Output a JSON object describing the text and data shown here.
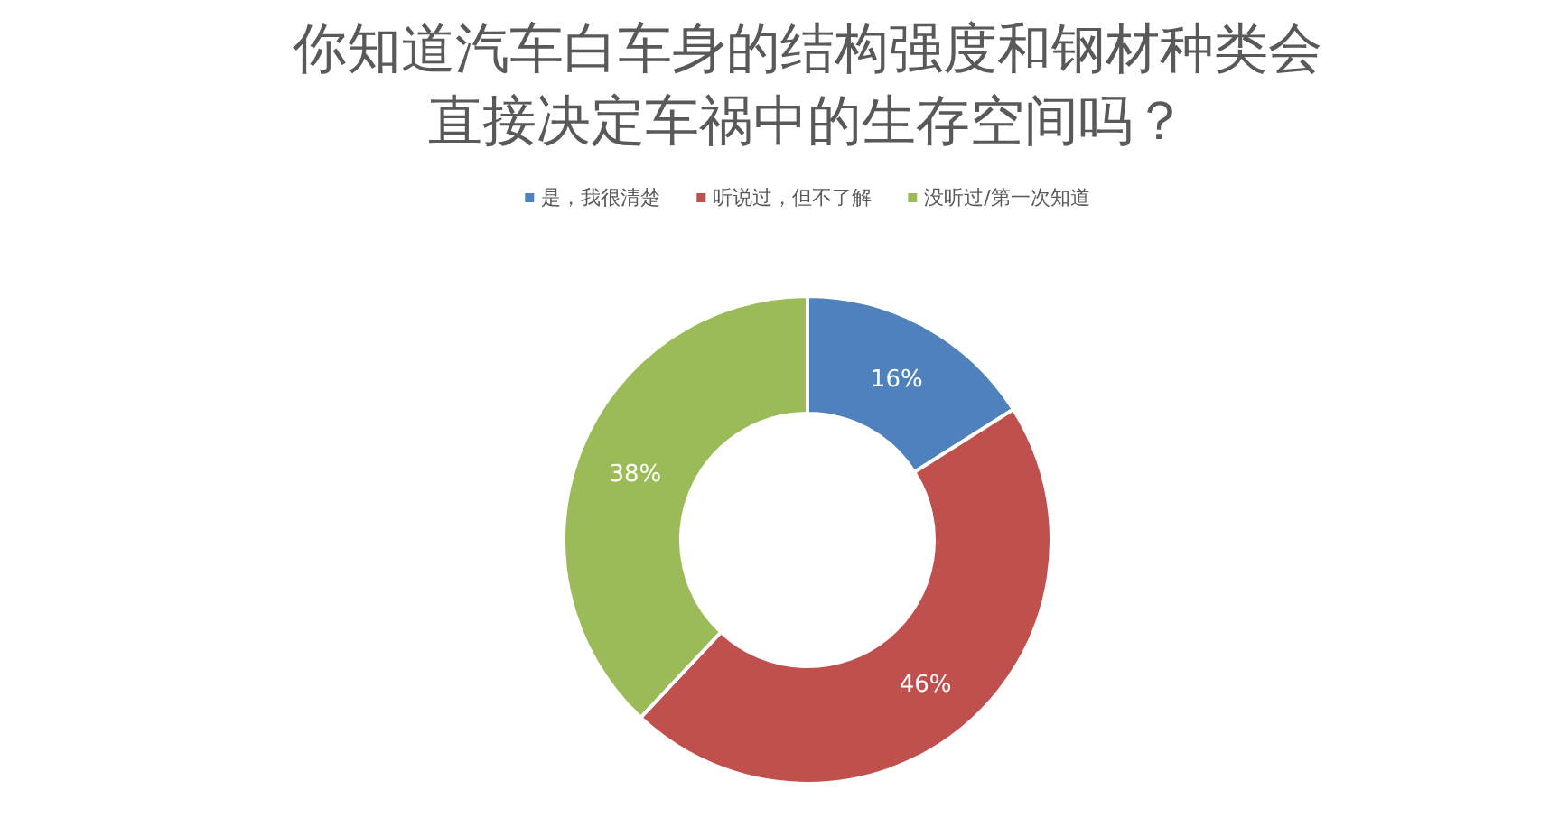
{
  "chart_data": {
    "type": "donut",
    "title": "你知道汽车白车身的结构强度和钢材种类会直接决定车祸中的生存空间吗？",
    "categories": [
      "是，我很清楚",
      "听说过，但不了解",
      "没听过/第一次知道"
    ],
    "values": [
      16,
      46,
      38
    ],
    "colors": [
      "#4f81bd",
      "#c0504d",
      "#9bbb59"
    ],
    "value_labels": [
      "16%",
      "46%",
      "38%"
    ],
    "legend": "top"
  }
}
